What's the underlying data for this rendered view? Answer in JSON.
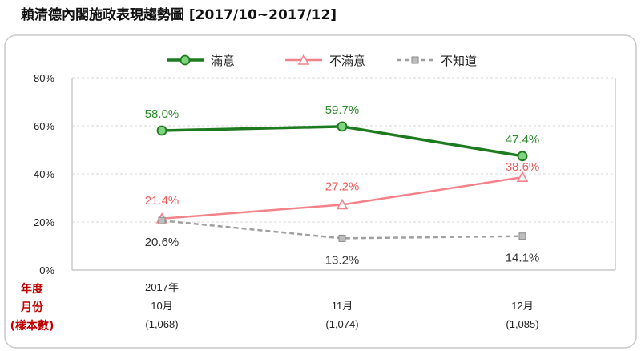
{
  "page": {
    "title": "賴清德內閣施政表現趨勢圖 [2017/10~2017/12]"
  },
  "chart_data": {
    "type": "line",
    "title": "賴清德內閣施政表現趨勢圖 [2017/10~2017/12]",
    "x_axis_title": [
      "年度",
      "月份",
      "(樣本數)"
    ],
    "categories": [
      {
        "year": "2017年",
        "month": "10月",
        "sample": "(1,068)"
      },
      {
        "year": "",
        "month": "11月",
        "sample": "(1,074)"
      },
      {
        "year": "",
        "month": "12月",
        "sample": "(1,085)"
      }
    ],
    "yticks": [
      "0%",
      "20%",
      "40%",
      "60%",
      "80%"
    ],
    "ylim": [
      0,
      80
    ],
    "grid": true,
    "legend_position": "top",
    "series": [
      {
        "name": "滿意",
        "values": [
          58.0,
          59.7,
          47.4
        ],
        "labels": [
          "58.0%",
          "59.7%",
          "47.4%"
        ],
        "color": "#1e7a1e",
        "label_color": "#2e8b2e",
        "marker": "circle",
        "dash": ""
      },
      {
        "name": "不滿意",
        "values": [
          21.4,
          27.2,
          38.6
        ],
        "labels": [
          "21.4%",
          "27.2%",
          "38.6%"
        ],
        "color": "#f4828a",
        "label_color": "#ef5b5b",
        "marker": "triangle",
        "dash": ""
      },
      {
        "name": "不知道",
        "values": [
          20.6,
          13.2,
          14.1
        ],
        "labels": [
          "20.6%",
          "13.2%",
          "14.1%"
        ],
        "color": "#a0a0a0",
        "label_color": "#333333",
        "marker": "square",
        "dash": "6,4"
      }
    ]
  }
}
